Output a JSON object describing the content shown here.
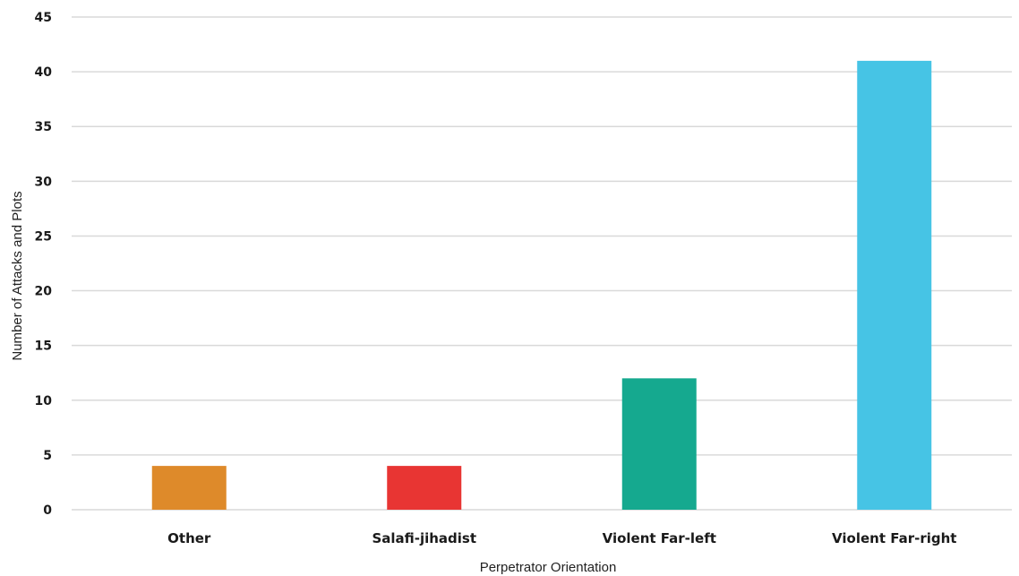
{
  "chart_data": {
    "type": "bar",
    "title": "",
    "xlabel": "Perpetrator Orientation",
    "ylabel": "Number of Attacks and Plots",
    "categories": [
      "Other",
      "Salafi-jihadist",
      "Violent Far-left",
      "Violent Far-right"
    ],
    "values": [
      4,
      4,
      12,
      41
    ],
    "colors": [
      "#de8a2a",
      "#e83533",
      "#15a98f",
      "#46c4e5"
    ],
    "ylim": [
      0,
      45
    ],
    "yticks": [
      0,
      5,
      10,
      15,
      20,
      25,
      30,
      35,
      40,
      45
    ],
    "grid": true,
    "gridline_color": "#d9d9d9",
    "legend": "none"
  }
}
